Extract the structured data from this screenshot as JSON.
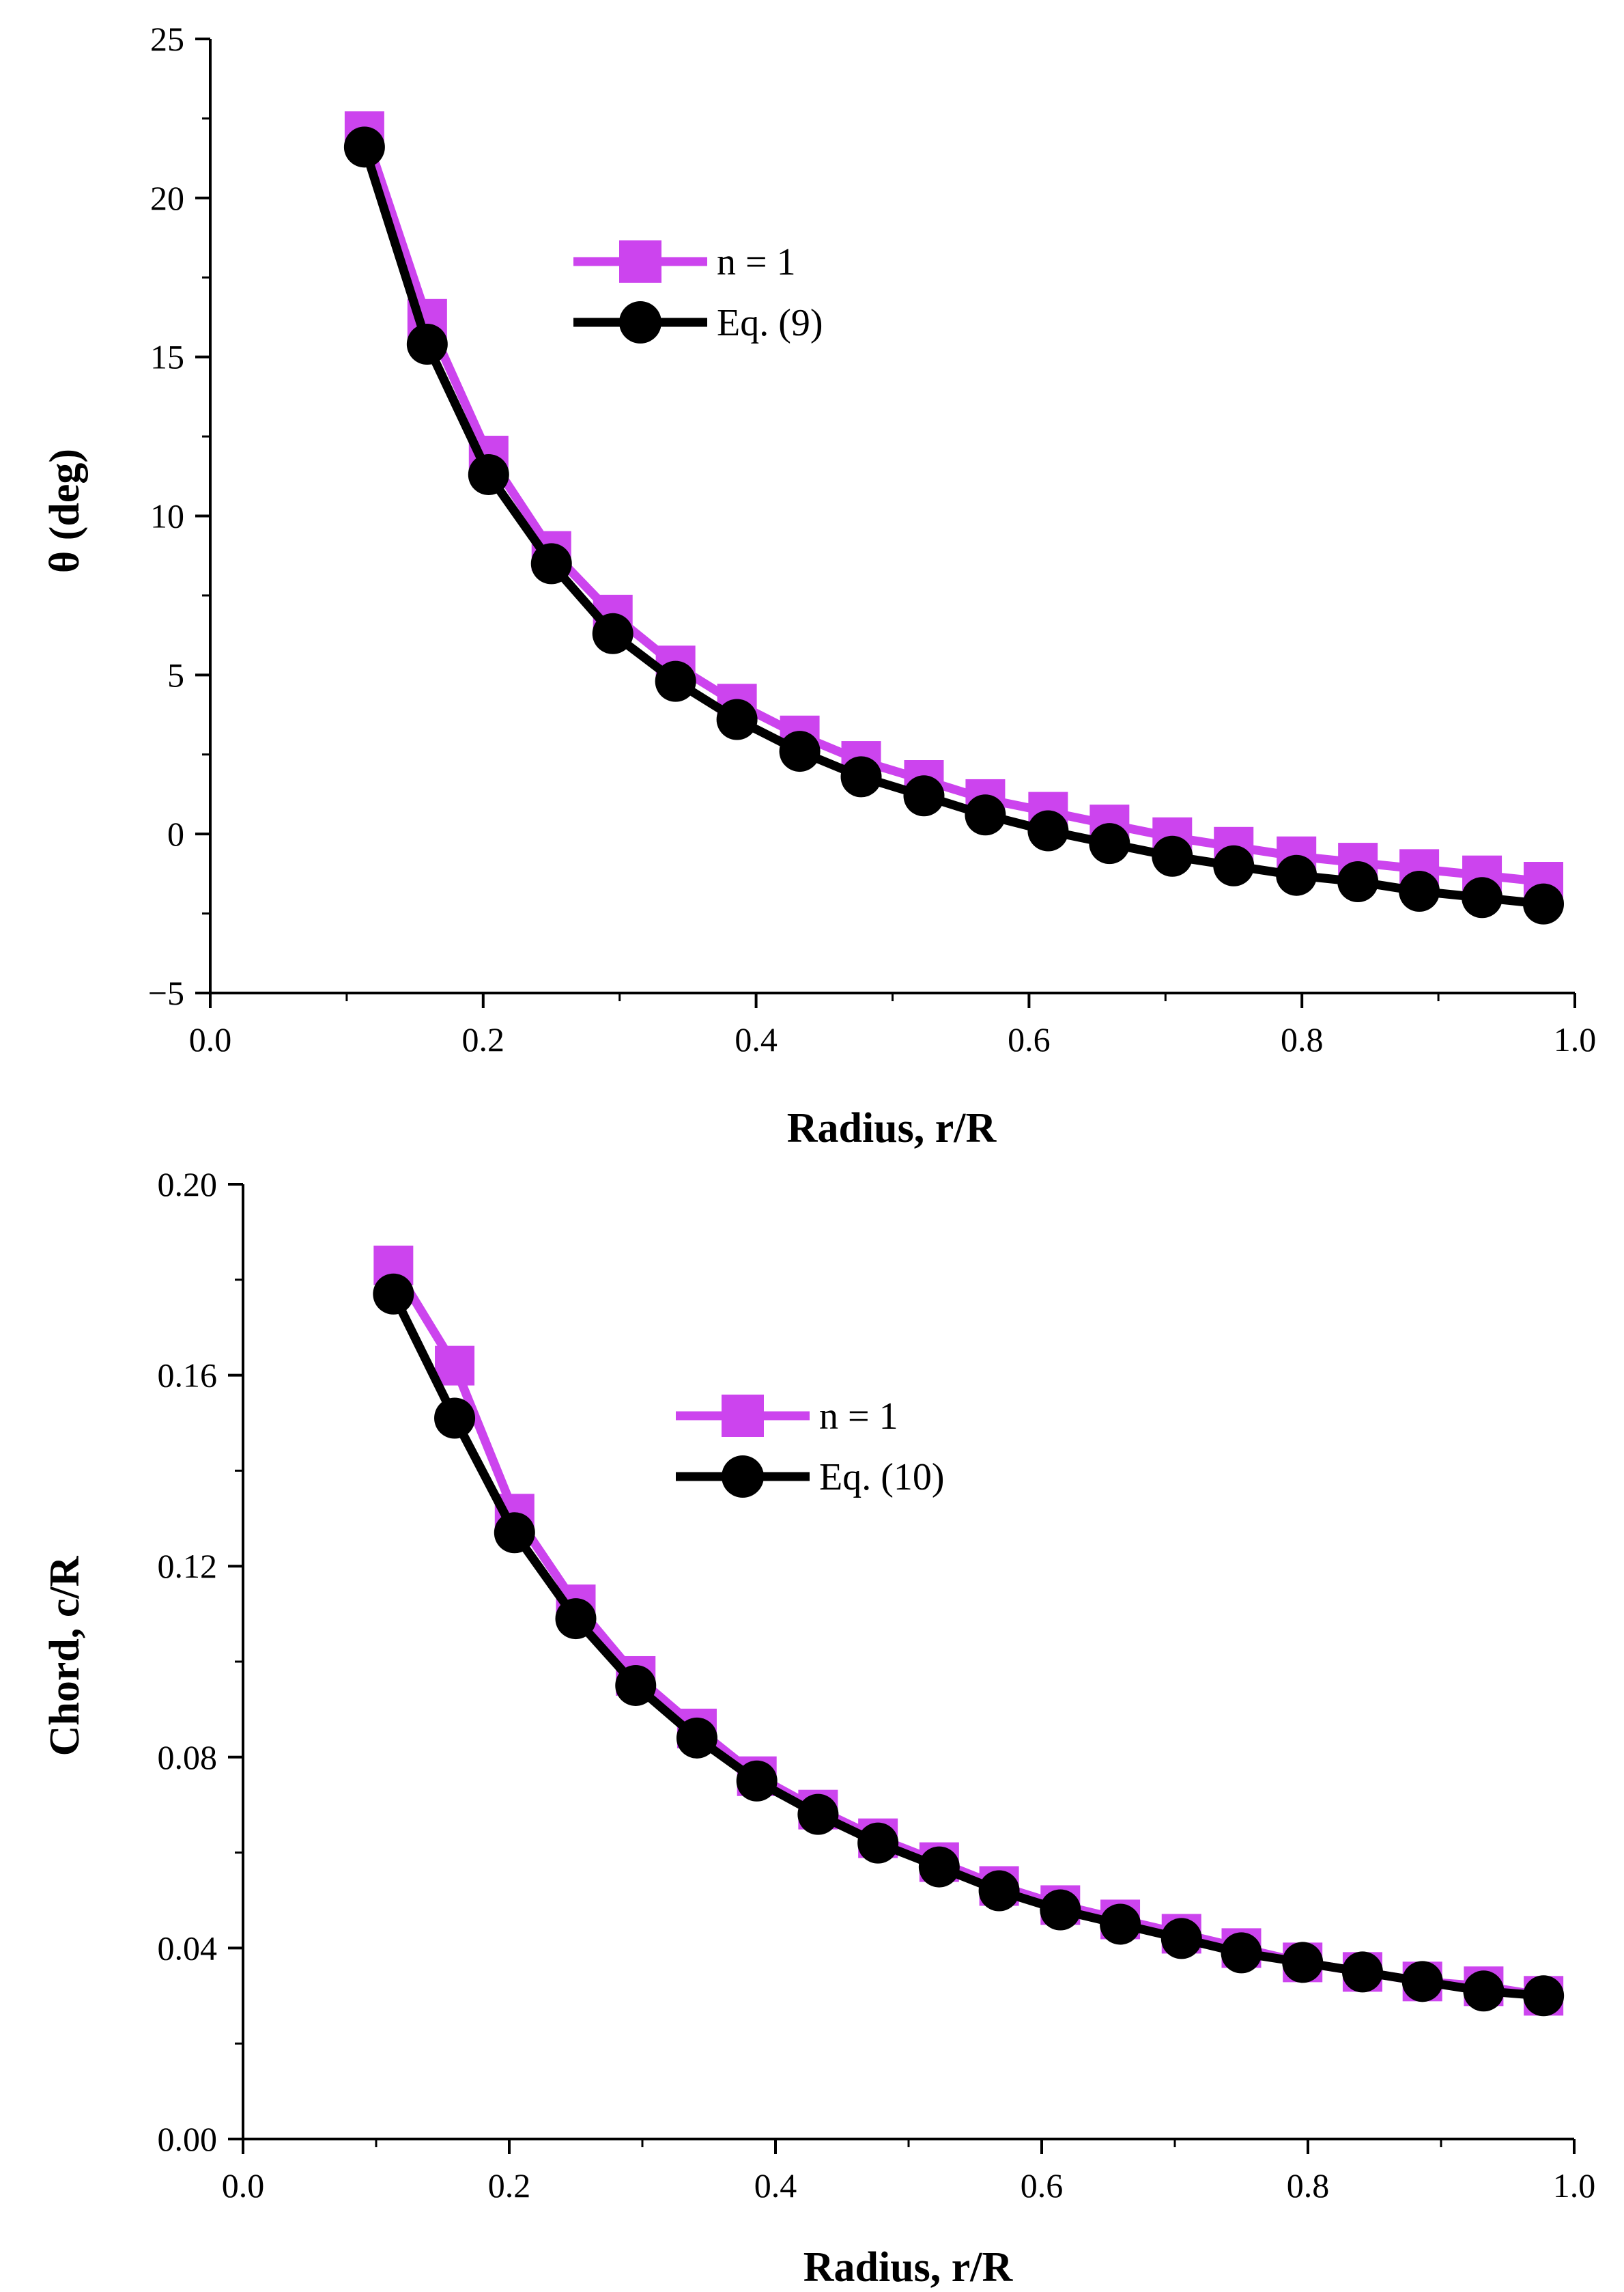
{
  "colors": {
    "magenta": "#cc44ee",
    "black": "#000000"
  },
  "chart_data": [
    {
      "type": "line",
      "title": "",
      "xlabel": "Radius, r/R",
      "ylabel": "θ (deg)",
      "xlim": [
        0.0,
        1.0
      ],
      "ylim": [
        -5,
        25
      ],
      "xticks": [
        "0.0",
        "0.2",
        "0.4",
        "0.6",
        "0.8",
        "1.0"
      ],
      "yticks": [
        "−5",
        "0",
        "5",
        "10",
        "15",
        "20",
        "25"
      ],
      "x": [
        0.113,
        0.159,
        0.204,
        0.25,
        0.295,
        0.341,
        0.386,
        0.432,
        0.477,
        0.523,
        0.568,
        0.614,
        0.659,
        0.705,
        0.75,
        0.796,
        0.841,
        0.886,
        0.932,
        0.977
      ],
      "series": [
        {
          "name": "n = 1",
          "marker": "square",
          "color": "#cc44ee",
          "values": [
            22.1,
            16.2,
            11.9,
            8.9,
            6.9,
            5.3,
            4.1,
            3.1,
            2.3,
            1.7,
            1.1,
            0.7,
            0.3,
            -0.1,
            -0.4,
            -0.7,
            -0.9,
            -1.1,
            -1.3,
            -1.5
          ]
        },
        {
          "name": "Eq. (9)",
          "marker": "circle",
          "color": "#000000",
          "values": [
            21.6,
            15.4,
            11.3,
            8.5,
            6.3,
            4.8,
            3.6,
            2.6,
            1.8,
            1.2,
            0.6,
            0.1,
            -0.3,
            -0.7,
            -1.0,
            -1.3,
            -1.5,
            -1.8,
            -2.0,
            -2.2
          ]
        }
      ],
      "legend_position": "upper-center"
    },
    {
      "type": "line",
      "title": "",
      "xlabel": "Radius, r/R",
      "ylabel": "Chord, c/R",
      "xlim": [
        0.0,
        1.0
      ],
      "ylim": [
        0.0,
        0.2
      ],
      "xticks": [
        "0.0",
        "0.2",
        "0.4",
        "0.6",
        "0.8",
        "1.0"
      ],
      "yticks": [
        "0.00",
        "0.04",
        "0.08",
        "0.12",
        "0.16",
        "0.20"
      ],
      "x": [
        0.113,
        0.159,
        0.204,
        0.25,
        0.295,
        0.341,
        0.386,
        0.432,
        0.477,
        0.523,
        0.568,
        0.614,
        0.659,
        0.705,
        0.75,
        0.796,
        0.841,
        0.886,
        0.932,
        0.977
      ],
      "series": [
        {
          "name": "n = 1",
          "marker": "square",
          "color": "#cc44ee",
          "values": [
            0.183,
            0.162,
            0.131,
            0.112,
            0.097,
            0.086,
            0.076,
            0.069,
            0.063,
            0.058,
            0.053,
            0.049,
            0.046,
            0.043,
            0.04,
            0.037,
            0.035,
            0.033,
            0.032,
            0.03
          ]
        },
        {
          "name": "Eq. (10)",
          "marker": "circle",
          "color": "#000000",
          "values": [
            0.177,
            0.151,
            0.127,
            0.109,
            0.095,
            0.084,
            0.075,
            0.068,
            0.062,
            0.057,
            0.052,
            0.048,
            0.045,
            0.042,
            0.039,
            0.037,
            0.035,
            0.033,
            0.031,
            0.03
          ]
        }
      ],
      "legend_position": "upper-center"
    }
  ]
}
